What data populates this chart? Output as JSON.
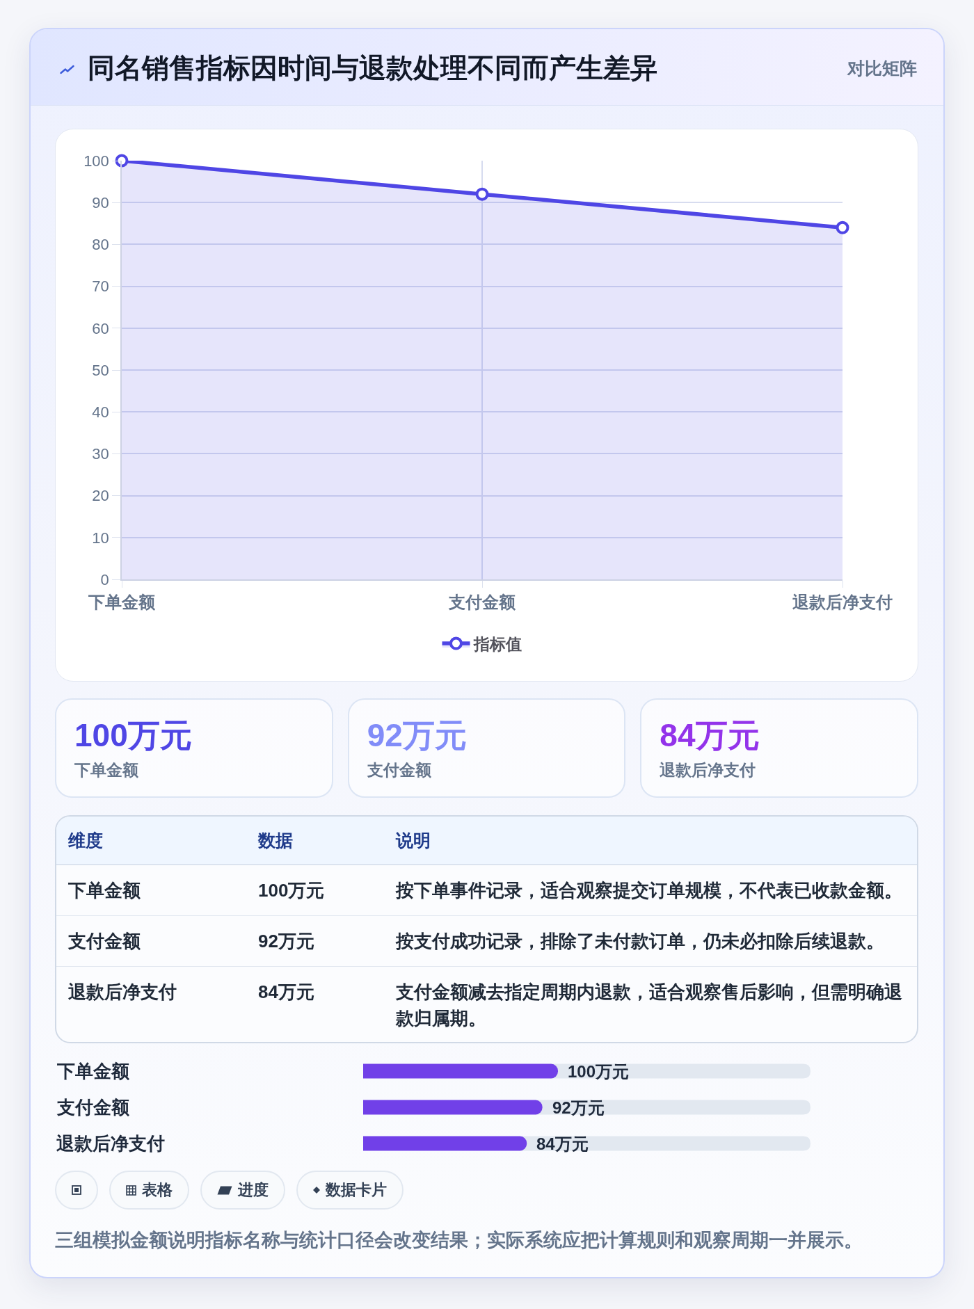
{
  "chart_data": [
    {
      "type": "area",
      "title": "同名销售指标因时间与退款处理不同而产生差异",
      "subtitle": "对比矩阵",
      "categories": [
        "下单金额",
        "支付金额",
        "退款后净支付"
      ],
      "series": [
        {
          "name": "指标值",
          "color": "#4f46e5",
          "values": [
            100,
            92,
            84
          ]
        }
      ],
      "ylim": [
        0,
        100
      ],
      "yticks": [
        0,
        10,
        20,
        30,
        40,
        50,
        60,
        70,
        80,
        90,
        100
      ],
      "grid": true,
      "legend": "bottom",
      "marker": "circle",
      "line_style": "solid"
    },
    {
      "type": "other",
      "categories": [
        "下单金额",
        "支付金额",
        "退款后净支付"
      ],
      "value_labels": [
        "100万元",
        "92万元",
        "84万元"
      ]
    },
    {
      "type": "other",
      "categories": [
        "维度",
        "数据",
        "说明"
      ],
      "cell_labels": [
        [
          "下单金额",
          "100万元",
          "按下单事件记录，适合观察提交订单规模，不代表已收款金额。"
        ],
        [
          "支付金额",
          "92万元",
          "按支付成功记录，排除了未付款订单，仍未必扣除后续退款。"
        ],
        [
          "退款后净支付",
          "84万元",
          "支付金额减去指定周期内退款，适合观察售后影响，但需明确退款归属期。"
        ]
      ]
    },
    {
      "type": "bar",
      "orientation": "horizontal",
      "categories": [
        "下单金额",
        "支付金额",
        "退款后净支付"
      ],
      "values": [
        100,
        92,
        84
      ],
      "value_labels": [
        "100万元",
        "92万元",
        "84万元"
      ],
      "color": "#7140e8",
      "tick_labels": "y"
    },
    {
      "type": "other",
      "categories": [
        null,
        "表格",
        "进度",
        "数据卡片"
      ],
      "annotations": [
        "三组模拟金额说明指标名称与统计口径会改变结果；实际系统应把计算规则和观察周期一并展示。"
      ]
    }
  ]
}
